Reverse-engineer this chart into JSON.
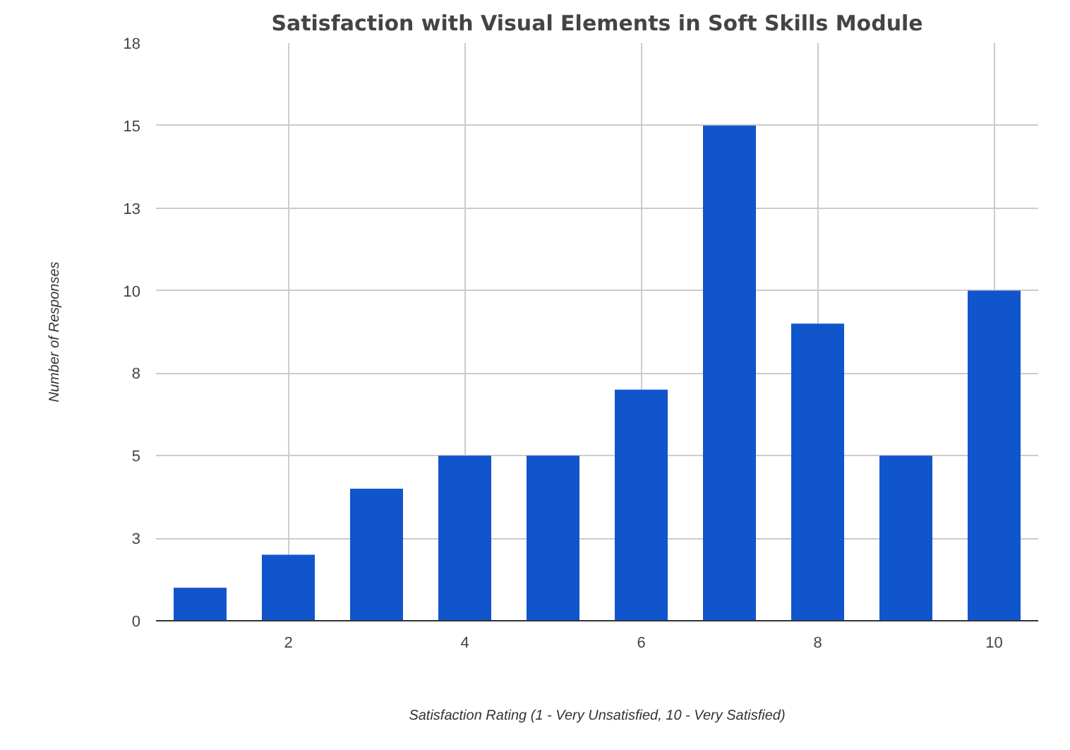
{
  "chart_data": {
    "type": "bar",
    "title": "Satisfaction with Visual Elements in Soft Skills Module",
    "xlabel": "Satisfaction Rating (1 - Very Unsatisfied, 10 - Very Satisfied)",
    "ylabel": "Number of Responses",
    "x": [
      1,
      2,
      3,
      4,
      5,
      6,
      7,
      8,
      9,
      10
    ],
    "values": [
      1,
      2,
      4,
      5,
      5,
      7,
      15,
      9,
      5,
      10
    ],
    "color": "#1155cc",
    "xlim": [
      0.5,
      10.5
    ],
    "xticks": [
      2,
      4,
      6,
      8,
      10
    ],
    "ylim": [
      0,
      17.5
    ],
    "yticks": [
      0,
      {
        "value": 2.5,
        "label": "3"
      },
      5,
      {
        "value": 7.5,
        "label": "8"
      },
      10,
      {
        "value": 12.5,
        "label": "13"
      },
      15,
      {
        "value": 17.5,
        "label": "18"
      }
    ],
    "grid": true
  }
}
